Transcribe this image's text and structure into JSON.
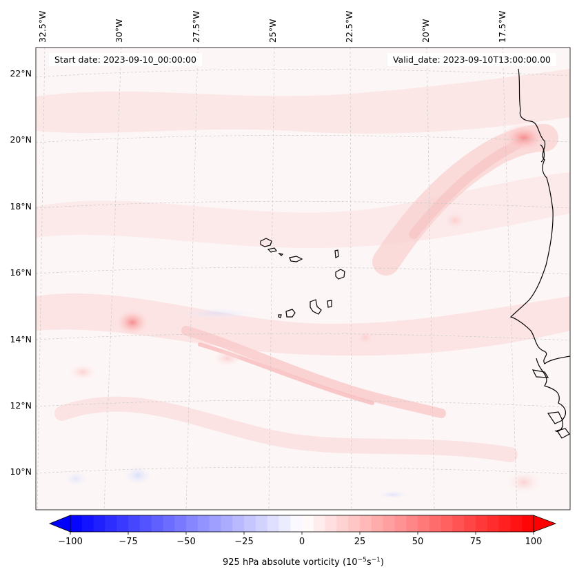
{
  "map": {
    "start_date": "Start date: 2023-09-10_00:00:00",
    "valid_date": "Valid_date: 2023-09-10T13:00:00.00",
    "lon_labels": [
      "32.5°W",
      "30°W",
      "27.5°W",
      "25°W",
      "22.5°W",
      "20°W",
      "17.5°W"
    ],
    "lat_labels": [
      "22°N",
      "20°N",
      "18°N",
      "16°N",
      "14°N",
      "12°N",
      "10°N"
    ],
    "features": [
      "Cape Verde Islands",
      "West African coastline"
    ],
    "vorticity_maxima": [
      {
        "lon": -29.6,
        "lat": 14.5,
        "value": 45
      },
      {
        "lon": -16.8,
        "lat": 20.0,
        "value": 40
      }
    ]
  },
  "colorbar": {
    "title": "925 hPa absolute vorticity (10",
    "title_unit_exp1": "−5",
    "title_mid": "s",
    "title_unit_exp2": "−1",
    "title_end": ")",
    "ticks": [
      -100,
      -75,
      -50,
      -25,
      0,
      25,
      50,
      75,
      100
    ],
    "tick_labels": [
      "−100",
      "−75",
      "−50",
      "−25",
      "0",
      "25",
      "50",
      "75",
      "100"
    ],
    "range": [
      -100,
      100
    ],
    "n_levels": 41,
    "colormap": "bwr",
    "extend": "both"
  },
  "colors": {
    "land_line": "#000000",
    "grid": "#c8c8c8",
    "background": "#fdf6f6"
  }
}
